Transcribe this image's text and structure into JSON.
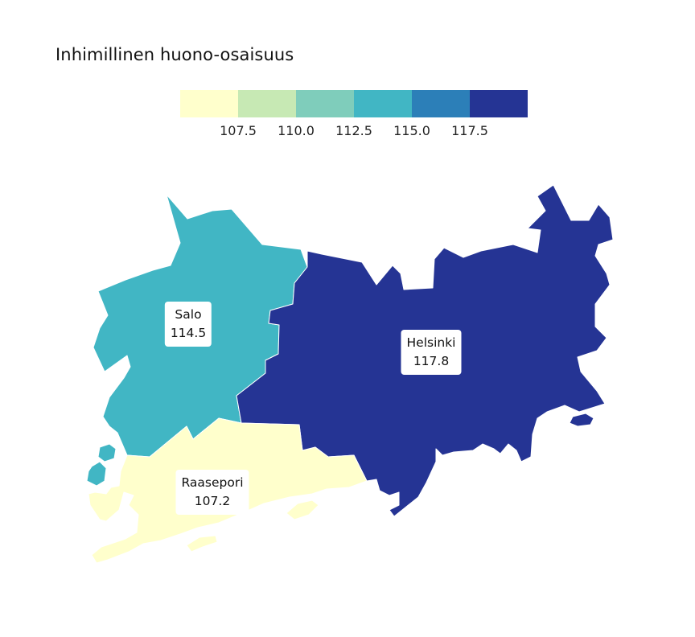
{
  "title": "Inhimillinen huono-osaisuus",
  "legend": {
    "colors": [
      "#ffffcc",
      "#c7e9b4",
      "#7fcdbb",
      "#41b6c4",
      "#2c7fb8",
      "#253494"
    ],
    "ticks": [
      "107.5",
      "110.0",
      "112.5",
      "115.0",
      "117.5"
    ]
  },
  "chart_data": {
    "type": "choropleth",
    "title": "Inhimillinen huono-osaisuus",
    "legend": {
      "placement": "top",
      "breaks": [
        107.5,
        110.0,
        112.5,
        115.0,
        117.5
      ]
    },
    "regions": [
      {
        "name": "Salo",
        "value": 114.5,
        "color": "#41b6c4"
      },
      {
        "name": "Helsinki",
        "value": 117.8,
        "color": "#253494"
      },
      {
        "name": "Raasepori",
        "value": 107.2,
        "color": "#ffffcc"
      }
    ]
  }
}
